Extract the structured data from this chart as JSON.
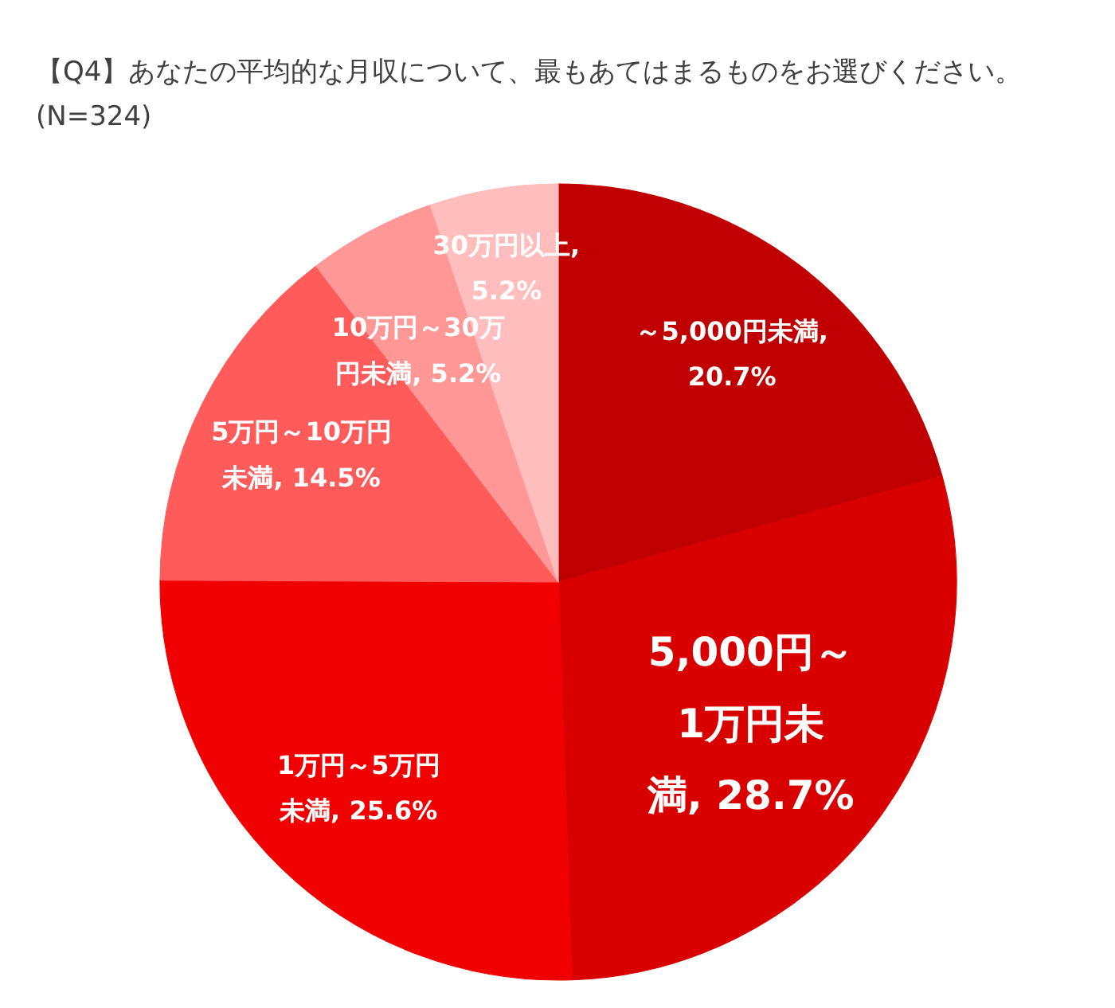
{
  "chart_data": {
    "type": "pie",
    "title": "【Q4】あなたの平均的な月収について、最もあてはまるものをお選びください。",
    "subtitle": "(N=324)",
    "categories": [
      "～5,000円未満",
      "5,000円～1万円未満",
      "1万円～5万円未満",
      "5万円～10万円未満",
      "10万円～30万円未満",
      "30万円以上"
    ],
    "values": [
      20.7,
      28.7,
      25.6,
      14.5,
      5.2,
      5.2
    ],
    "value_labels": [
      ", 20.7%",
      ", 28.7%",
      ", 25.6%",
      ", 14.5%",
      ", 5.2%",
      ", 5.2%"
    ],
    "colors": [
      "#c00000",
      "#d90000",
      "#f00000",
      "#ff5b5b",
      "#ff9797",
      "#ffbdbd"
    ]
  }
}
